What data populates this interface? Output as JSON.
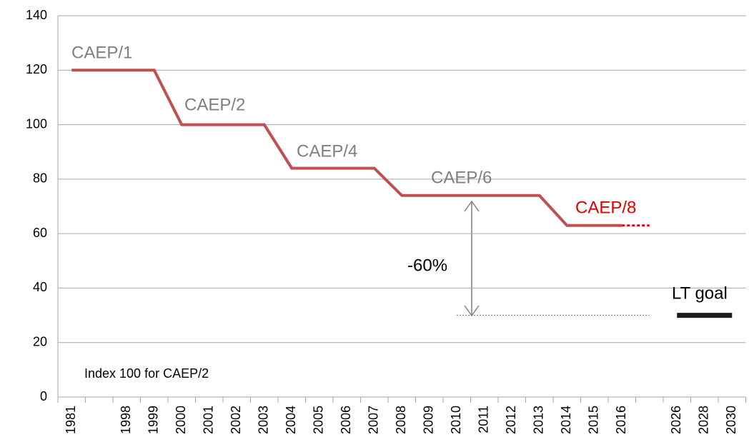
{
  "chart_data": {
    "type": "line",
    "categories": [
      "1981",
      null,
      "1998",
      "1999",
      "2000",
      "2001",
      "2002",
      "2003",
      "2004",
      "2005",
      "2006",
      "2007",
      "2008",
      "2009",
      "2010",
      "2011",
      "2012",
      "2013",
      "2014",
      "2015",
      "2016",
      null,
      "2026",
      "2028",
      "2030"
    ],
    "series": [
      {
        "color": "#c0504d",
        "style": "solid",
        "width": 4,
        "values": [
          120,
          120,
          120,
          120,
          100,
          100,
          100,
          100,
          84,
          84,
          84,
          84,
          74,
          74,
          74,
          74,
          74,
          74,
          63,
          63,
          63,
          null,
          null,
          null,
          null
        ]
      },
      {
        "color": "#e00000",
        "style": "dotted",
        "width": 3,
        "values": [
          null,
          null,
          null,
          null,
          null,
          null,
          null,
          null,
          null,
          null,
          null,
          null,
          null,
          null,
          null,
          null,
          null,
          null,
          null,
          null,
          63,
          63,
          null,
          null,
          null
        ]
      },
      {
        "color": "#666666",
        "style": "dotted",
        "width": 1,
        "values": [
          null,
          null,
          null,
          null,
          null,
          null,
          null,
          null,
          null,
          null,
          null,
          null,
          null,
          null,
          30,
          30,
          30,
          30,
          30,
          30,
          30,
          30,
          null,
          null,
          null
        ]
      },
      {
        "color": "#1a1a1a",
        "style": "solid",
        "width": 7,
        "values": [
          null,
          null,
          null,
          null,
          null,
          null,
          null,
          null,
          null,
          null,
          null,
          null,
          null,
          null,
          null,
          null,
          null,
          null,
          null,
          null,
          null,
          null,
          30,
          30,
          30
        ]
      }
    ],
    "annotations": [
      {
        "text": "CAEP/1",
        "color": "#7f7f7f"
      },
      {
        "text": "CAEP/2",
        "color": "#7f7f7f"
      },
      {
        "text": "CAEP/4",
        "color": "#7f7f7f"
      },
      {
        "text": "CAEP/6",
        "color": "#7f7f7f"
      },
      {
        "text": "CAEP/8",
        "color": "#e00000"
      },
      {
        "text": "-60%",
        "color": "#000000"
      },
      {
        "text": "LT goal",
        "color": "#000000"
      },
      {
        "text": "Index 100 for CAEP/2",
        "color": "#000000"
      }
    ],
    "ylim": [
      0,
      140
    ],
    "yticks": [
      0,
      20,
      40,
      60,
      80,
      100,
      120,
      140
    ],
    "grid": true
  }
}
